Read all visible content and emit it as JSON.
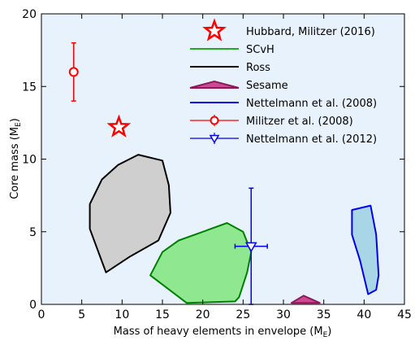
{
  "chart_data": {
    "type": "scatter",
    "xlabel": "Mass of heavy elements in envelope (M",
    "xlabel_sub": "E",
    "xlabel_tail": ")",
    "ylabel": "Core mass (M",
    "ylabel_sub": "E",
    "ylabel_tail": ")",
    "xlim": [
      0,
      45
    ],
    "ylim": [
      0,
      20
    ],
    "xticks": [
      0,
      5,
      10,
      15,
      20,
      25,
      30,
      35,
      40,
      45
    ],
    "yticks": [
      0,
      5,
      10,
      15,
      20
    ],
    "background": "#e8f2fc",
    "regions": [
      {
        "name": "SCvH",
        "fill": "#8fe88f",
        "stroke": "#008000",
        "points": [
          [
            13.5,
            2.0
          ],
          [
            15.0,
            3.6
          ],
          [
            17.0,
            4.4
          ],
          [
            20.0,
            5.0
          ],
          [
            23.0,
            5.6
          ],
          [
            25.0,
            5.0
          ],
          [
            26.0,
            3.6
          ],
          [
            25.5,
            2.2
          ],
          [
            24.5,
            0.5
          ],
          [
            24.0,
            0.2
          ],
          [
            18.0,
            0.1
          ]
        ]
      },
      {
        "name": "Ross",
        "fill": "#cfcfcf",
        "stroke": "#000000",
        "points": [
          [
            8.0,
            2.2
          ],
          [
            11.0,
            3.3
          ],
          [
            14.5,
            4.4
          ],
          [
            16.0,
            6.3
          ],
          [
            15.8,
            8.2
          ],
          [
            15.0,
            9.9
          ],
          [
            12.0,
            10.3
          ],
          [
            9.5,
            9.6
          ],
          [
            7.5,
            8.6
          ],
          [
            6.0,
            6.9
          ],
          [
            6.0,
            5.2
          ]
        ]
      },
      {
        "name": "Sesame",
        "fill": "#cc4a92",
        "stroke": "#8b1a5c",
        "points": [
          [
            31.0,
            0.1
          ],
          [
            32.5,
            0.6
          ],
          [
            34.5,
            0.1
          ]
        ]
      },
      {
        "name": "Nettelmann et al. (2008)",
        "fill": "#a8d6e6",
        "stroke": "#0000ee",
        "points": [
          [
            38.5,
            6.5
          ],
          [
            40.8,
            6.8
          ],
          [
            41.5,
            4.8
          ],
          [
            41.8,
            2.0
          ],
          [
            41.5,
            1.0
          ],
          [
            40.5,
            0.7
          ],
          [
            39.5,
            3.0
          ],
          [
            38.5,
            4.8
          ]
        ]
      }
    ],
    "points": [
      {
        "name": "Hubbard, Militzer (2016)",
        "marker": "star",
        "color": "#ff0000",
        "x": 9.6,
        "y": 12.2
      },
      {
        "name": "Militzer et al. (2008)",
        "marker": "circle",
        "color": "#ff0000",
        "x": 4.0,
        "y": 16.0,
        "yerr": [
          14.0,
          18.0
        ]
      },
      {
        "name": "Nettelmann et al. (2012)",
        "marker": "triangle-down",
        "color": "#0000ee",
        "x": 26.0,
        "y": 4.0,
        "xerr": [
          24.0,
          28.0
        ],
        "yerr": [
          0.0,
          8.0
        ]
      }
    ],
    "legend": {
      "position": "top-right",
      "entries": [
        {
          "label": "Hubbard, Militzer (2016)",
          "kind": "star",
          "color": "#ff0000"
        },
        {
          "label": "SCvH",
          "kind": "line",
          "color": "#22aa22"
        },
        {
          "label": "Ross",
          "kind": "line",
          "color": "#000000"
        },
        {
          "label": "Sesame",
          "kind": "patch",
          "color": "#cc4a92",
          "edge": "#8b1a5c"
        },
        {
          "label": "Nettelmann et al. (2008)",
          "kind": "line",
          "color": "#0000ee"
        },
        {
          "label": "Militzer et al. (2008)",
          "kind": "circle-err",
          "color": "#ff0000"
        },
        {
          "label": "Nettelmann et al. (2012)",
          "kind": "tri-err",
          "color": "#0000ee"
        }
      ]
    }
  }
}
